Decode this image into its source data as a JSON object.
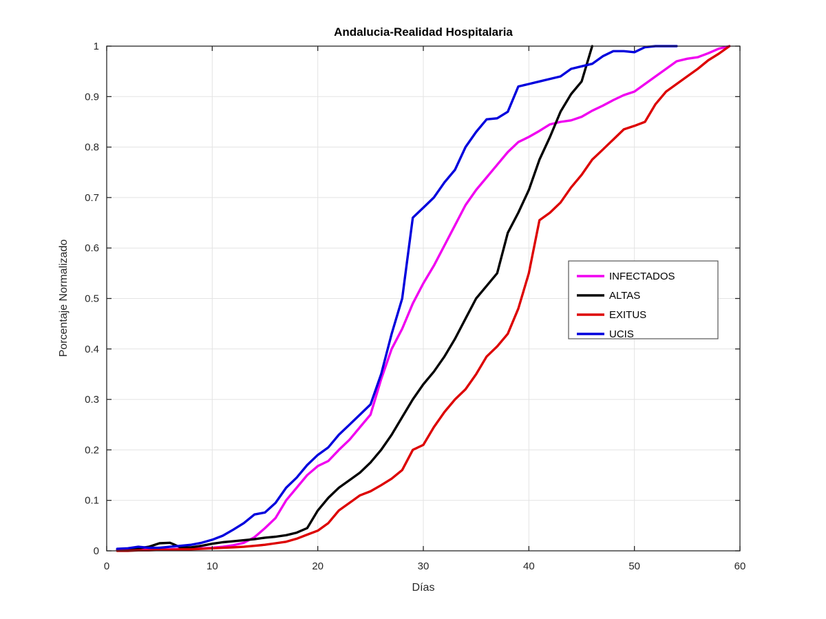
{
  "figure": {
    "title": "Andalucia-Realidad Hospitalaria",
    "xlabel": "Días",
    "ylabel": "Porcentaje Normalizado"
  },
  "chart_data": {
    "type": "line",
    "title": "Andalucia-Realidad Hospitalaria",
    "xlabel": "Días",
    "ylabel": "Porcentaje Normalizado",
    "xlim": [
      0,
      60
    ],
    "ylim": [
      0,
      1
    ],
    "xticks": [
      0,
      10,
      20,
      30,
      40,
      50,
      60
    ],
    "xtick_labels": [
      "0",
      "10",
      "20",
      "30",
      "40",
      "50",
      "60"
    ],
    "yticks": [
      0,
      0.1,
      0.2,
      0.3,
      0.4,
      0.5,
      0.6,
      0.7,
      0.8,
      0.9,
      1
    ],
    "ytick_labels": [
      "0",
      "0.1",
      "0.2",
      "0.3",
      "0.4",
      "0.5",
      "0.6",
      "0.7",
      "0.8",
      "0.9",
      "1"
    ],
    "grid": true,
    "grid_color": "#e3e3e3",
    "axis_color": "#262626",
    "legend_position": "middle-right",
    "series": [
      {
        "name": "INFECTADOS",
        "color": "#f000f0",
        "points": [
          [
            1,
            0.002
          ],
          [
            2,
            0.002
          ],
          [
            3,
            0.002
          ],
          [
            4,
            0.003
          ],
          [
            5,
            0.003
          ],
          [
            6,
            0.003
          ],
          [
            7,
            0.004
          ],
          [
            8,
            0.005
          ],
          [
            9,
            0.005
          ],
          [
            10,
            0.006
          ],
          [
            11,
            0.008
          ],
          [
            12,
            0.011
          ],
          [
            13,
            0.016
          ],
          [
            14,
            0.027
          ],
          [
            15,
            0.045
          ],
          [
            16,
            0.065
          ],
          [
            17,
            0.1
          ],
          [
            18,
            0.125
          ],
          [
            19,
            0.15
          ],
          [
            20,
            0.168
          ],
          [
            21,
            0.178
          ],
          [
            22,
            0.2
          ],
          [
            23,
            0.22
          ],
          [
            24,
            0.245
          ],
          [
            25,
            0.27
          ],
          [
            26,
            0.34
          ],
          [
            27,
            0.4
          ],
          [
            28,
            0.44
          ],
          [
            29,
            0.49
          ],
          [
            30,
            0.53
          ],
          [
            31,
            0.565
          ],
          [
            32,
            0.605
          ],
          [
            33,
            0.645
          ],
          [
            34,
            0.685
          ],
          [
            35,
            0.715
          ],
          [
            36,
            0.74
          ],
          [
            37,
            0.765
          ],
          [
            38,
            0.79
          ],
          [
            39,
            0.81
          ],
          [
            40,
            0.82
          ],
          [
            41,
            0.832
          ],
          [
            42,
            0.845
          ],
          [
            43,
            0.85
          ],
          [
            44,
            0.853
          ],
          [
            45,
            0.86
          ],
          [
            46,
            0.872
          ],
          [
            47,
            0.882
          ],
          [
            48,
            0.893
          ],
          [
            49,
            0.903
          ],
          [
            50,
            0.91
          ],
          [
            51,
            0.925
          ],
          [
            52,
            0.94
          ],
          [
            53,
            0.955
          ],
          [
            54,
            0.97
          ],
          [
            55,
            0.975
          ],
          [
            56,
            0.978
          ],
          [
            57,
            0.986
          ],
          [
            58,
            0.995
          ],
          [
            59,
            1.0
          ]
        ]
      },
      {
        "name": "ALTAS",
        "color": "#000000",
        "points": [
          [
            1,
            0.003
          ],
          [
            2,
            0.004
          ],
          [
            3,
            0.005
          ],
          [
            4,
            0.008
          ],
          [
            5,
            0.015
          ],
          [
            6,
            0.016
          ],
          [
            7,
            0.007
          ],
          [
            8,
            0.007
          ],
          [
            9,
            0.01
          ],
          [
            10,
            0.014
          ],
          [
            11,
            0.017
          ],
          [
            12,
            0.019
          ],
          [
            13,
            0.021
          ],
          [
            14,
            0.023
          ],
          [
            15,
            0.026
          ],
          [
            16,
            0.028
          ],
          [
            17,
            0.031
          ],
          [
            18,
            0.036
          ],
          [
            19,
            0.045
          ],
          [
            20,
            0.08
          ],
          [
            21,
            0.105
          ],
          [
            22,
            0.125
          ],
          [
            23,
            0.14
          ],
          [
            24,
            0.155
          ],
          [
            25,
            0.175
          ],
          [
            26,
            0.2
          ],
          [
            27,
            0.23
          ],
          [
            28,
            0.265
          ],
          [
            29,
            0.3
          ],
          [
            30,
            0.33
          ],
          [
            31,
            0.355
          ],
          [
            32,
            0.385
          ],
          [
            33,
            0.42
          ],
          [
            34,
            0.46
          ],
          [
            35,
            0.5
          ],
          [
            36,
            0.525
          ],
          [
            37,
            0.55
          ],
          [
            38,
            0.63
          ],
          [
            39,
            0.67
          ],
          [
            40,
            0.715
          ],
          [
            41,
            0.775
          ],
          [
            42,
            0.82
          ],
          [
            43,
            0.87
          ],
          [
            44,
            0.905
          ],
          [
            45,
            0.93
          ],
          [
            46,
            1.0
          ]
        ]
      },
      {
        "name": "EXITUS",
        "color": "#dd0000",
        "points": [
          [
            1,
            0.0
          ],
          [
            2,
            0.0
          ],
          [
            3,
            0.001
          ],
          [
            4,
            0.001
          ],
          [
            5,
            0.002
          ],
          [
            6,
            0.002
          ],
          [
            7,
            0.003
          ],
          [
            8,
            0.003
          ],
          [
            9,
            0.004
          ],
          [
            10,
            0.005
          ],
          [
            11,
            0.006
          ],
          [
            12,
            0.007
          ],
          [
            13,
            0.008
          ],
          [
            14,
            0.01
          ],
          [
            15,
            0.012
          ],
          [
            16,
            0.015
          ],
          [
            17,
            0.018
          ],
          [
            18,
            0.024
          ],
          [
            19,
            0.032
          ],
          [
            20,
            0.04
          ],
          [
            21,
            0.055
          ],
          [
            22,
            0.08
          ],
          [
            23,
            0.095
          ],
          [
            24,
            0.11
          ],
          [
            25,
            0.118
          ],
          [
            26,
            0.13
          ],
          [
            27,
            0.143
          ],
          [
            28,
            0.16
          ],
          [
            29,
            0.2
          ],
          [
            30,
            0.21
          ],
          [
            31,
            0.245
          ],
          [
            32,
            0.275
          ],
          [
            33,
            0.3
          ],
          [
            34,
            0.32
          ],
          [
            35,
            0.35
          ],
          [
            36,
            0.385
          ],
          [
            37,
            0.405
          ],
          [
            38,
            0.43
          ],
          [
            39,
            0.48
          ],
          [
            40,
            0.55
          ],
          [
            41,
            0.655
          ],
          [
            42,
            0.67
          ],
          [
            43,
            0.69
          ],
          [
            44,
            0.72
          ],
          [
            45,
            0.745
          ],
          [
            46,
            0.775
          ],
          [
            47,
            0.795
          ],
          [
            48,
            0.815
          ],
          [
            49,
            0.835
          ],
          [
            50,
            0.842
          ],
          [
            51,
            0.85
          ],
          [
            52,
            0.885
          ],
          [
            53,
            0.91
          ],
          [
            54,
            0.925
          ],
          [
            55,
            0.94
          ],
          [
            56,
            0.955
          ],
          [
            57,
            0.972
          ],
          [
            58,
            0.985
          ],
          [
            59,
            1.0
          ]
        ]
      },
      {
        "name": "UCIS",
        "color": "#0000dd",
        "points": [
          [
            1,
            0.004
          ],
          [
            2,
            0.005
          ],
          [
            3,
            0.008
          ],
          [
            4,
            0.006
          ],
          [
            5,
            0.006
          ],
          [
            6,
            0.008
          ],
          [
            7,
            0.01
          ],
          [
            8,
            0.012
          ],
          [
            9,
            0.016
          ],
          [
            10,
            0.022
          ],
          [
            11,
            0.03
          ],
          [
            12,
            0.042
          ],
          [
            13,
            0.055
          ],
          [
            14,
            0.072
          ],
          [
            15,
            0.076
          ],
          [
            16,
            0.095
          ],
          [
            17,
            0.125
          ],
          [
            18,
            0.145
          ],
          [
            19,
            0.17
          ],
          [
            20,
            0.19
          ],
          [
            21,
            0.205
          ],
          [
            22,
            0.23
          ],
          [
            23,
            0.25
          ],
          [
            24,
            0.27
          ],
          [
            25,
            0.29
          ],
          [
            26,
            0.35
          ],
          [
            27,
            0.43
          ],
          [
            28,
            0.5
          ],
          [
            29,
            0.66
          ],
          [
            30,
            0.68
          ],
          [
            31,
            0.7
          ],
          [
            32,
            0.73
          ],
          [
            33,
            0.755
          ],
          [
            34,
            0.8
          ],
          [
            35,
            0.83
          ],
          [
            36,
            0.855
          ],
          [
            37,
            0.857
          ],
          [
            38,
            0.87
          ],
          [
            39,
            0.92
          ],
          [
            40,
            0.925
          ],
          [
            41,
            0.93
          ],
          [
            42,
            0.935
          ],
          [
            43,
            0.94
          ],
          [
            44,
            0.955
          ],
          [
            45,
            0.96
          ],
          [
            46,
            0.965
          ],
          [
            47,
            0.98
          ],
          [
            48,
            0.99
          ],
          [
            49,
            0.99
          ],
          [
            50,
            0.988
          ],
          [
            51,
            0.998
          ],
          [
            52,
            1.0
          ],
          [
            53,
            1.0
          ],
          [
            54,
            1.0
          ]
        ]
      }
    ]
  }
}
